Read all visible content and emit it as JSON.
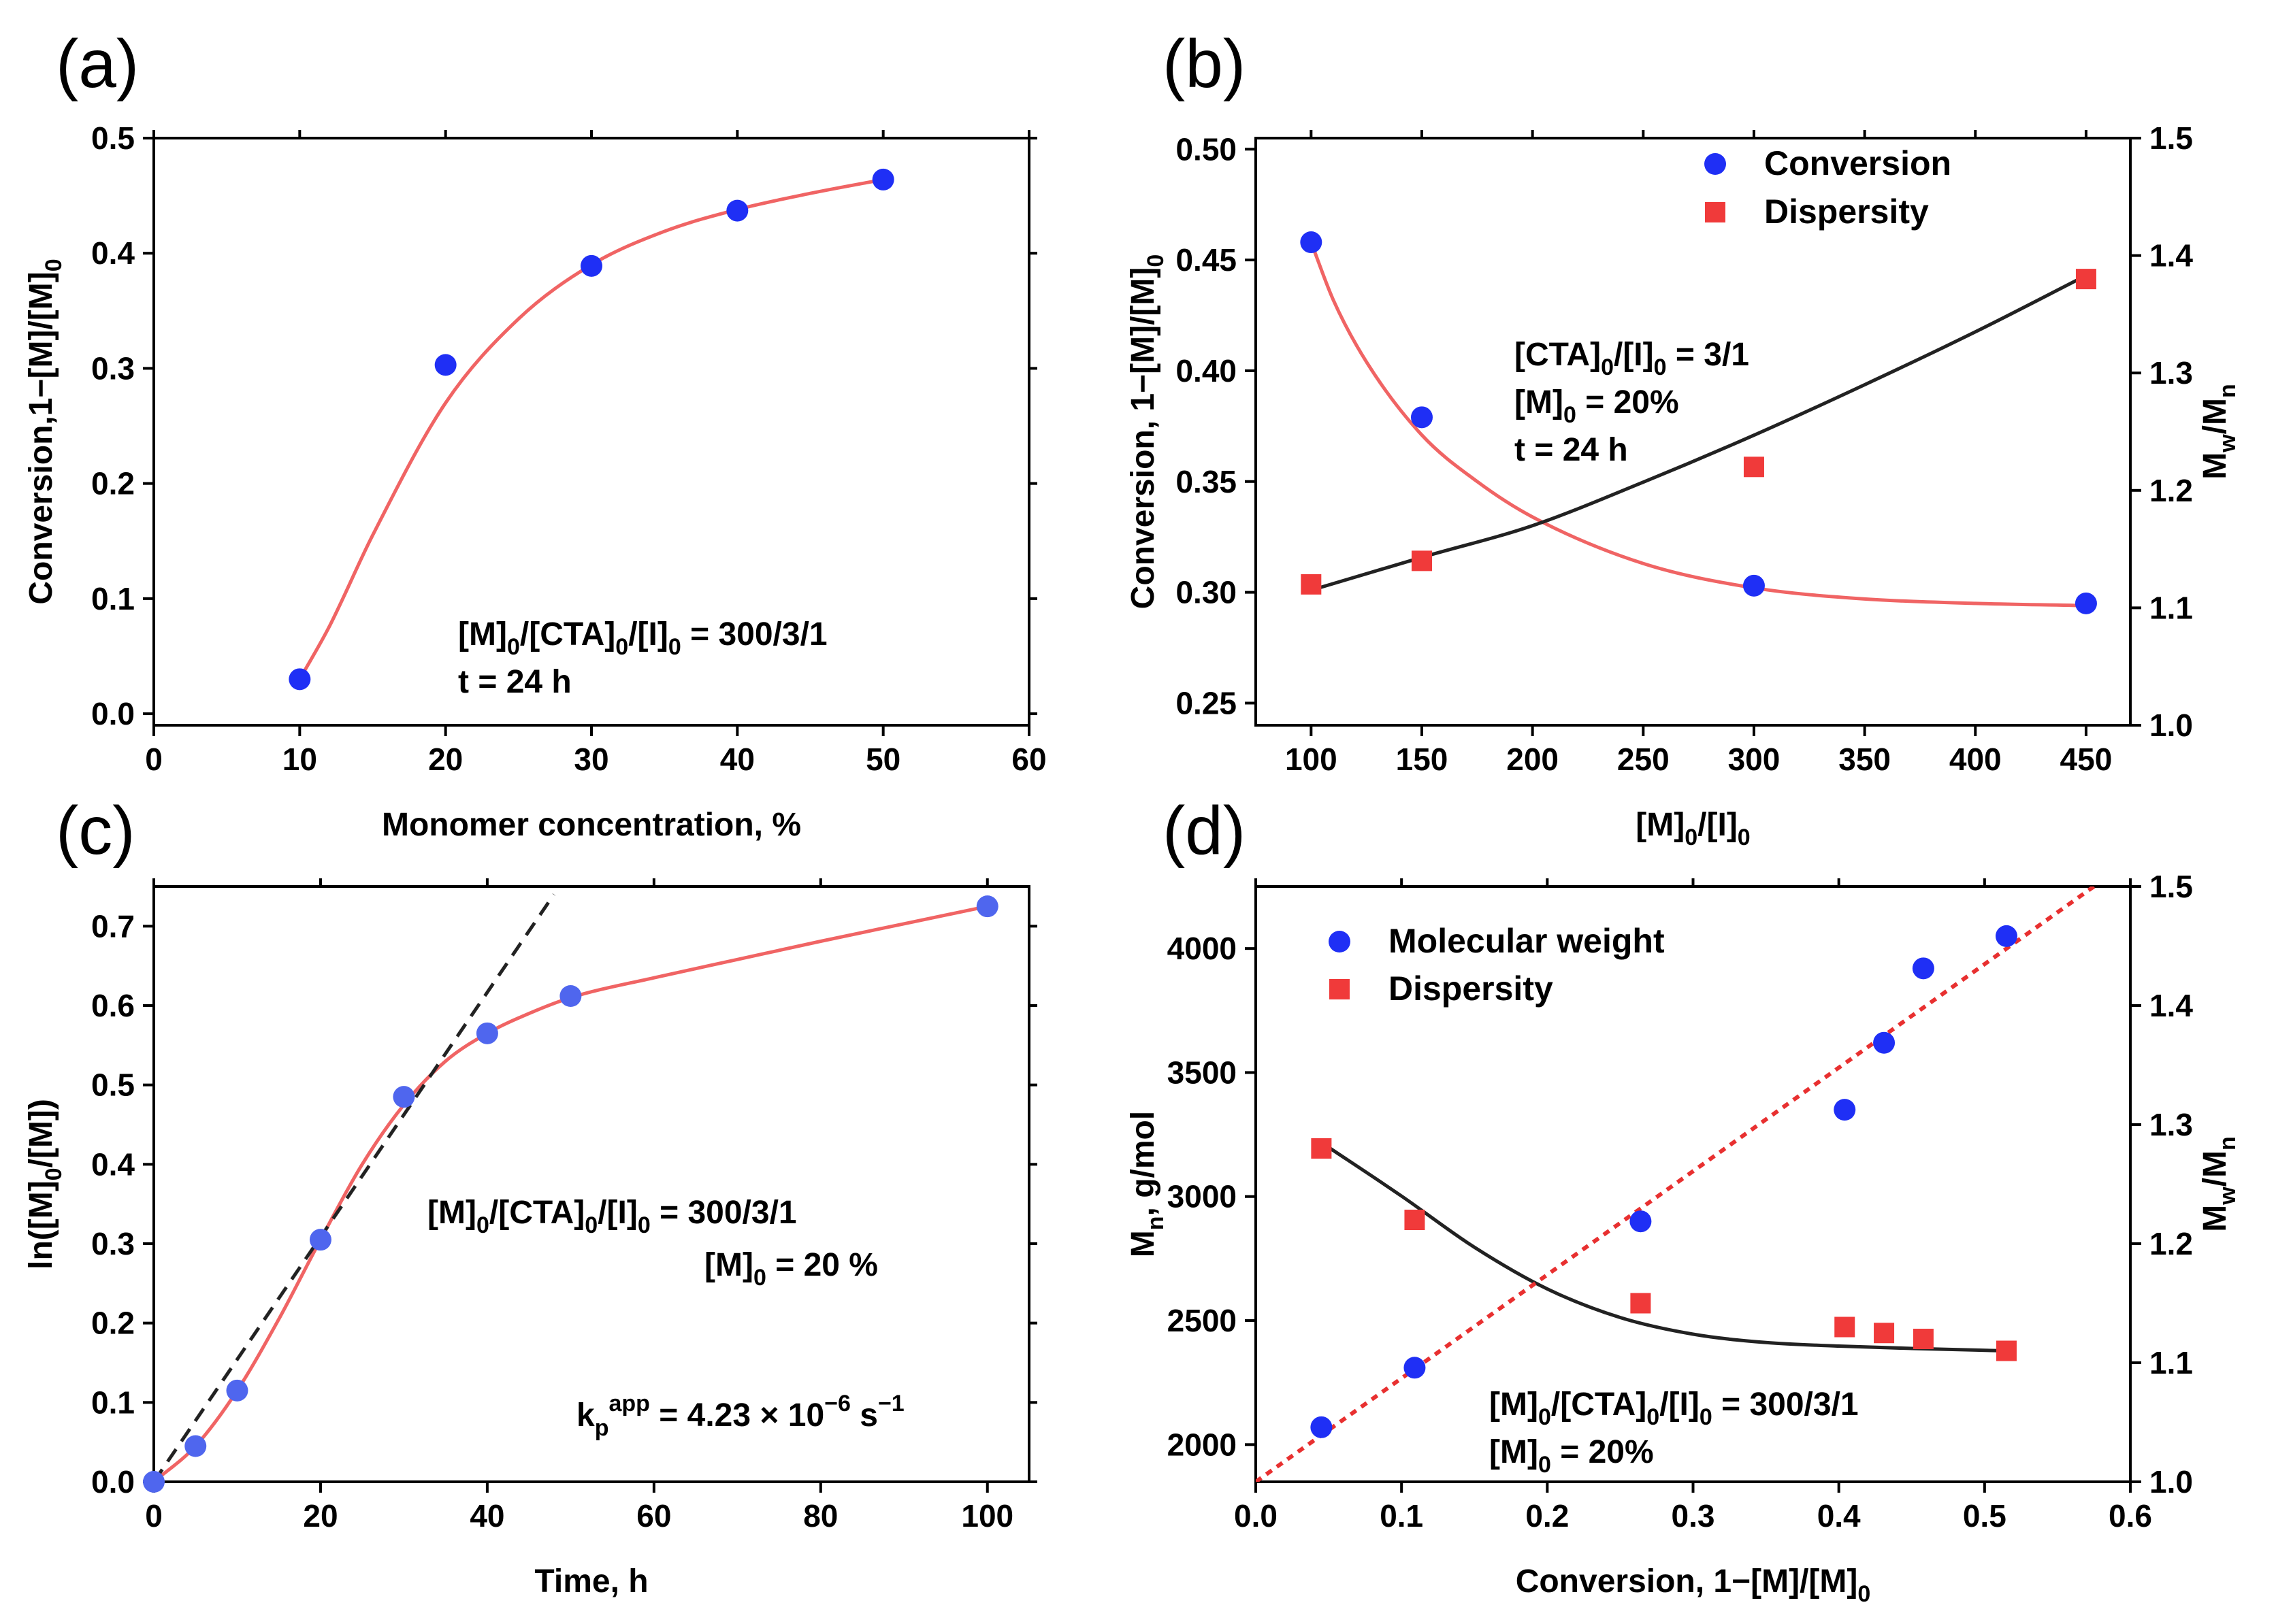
{
  "colors": {
    "blue": "#1f2ff5",
    "blue_light": "#4f66ee",
    "red": "#f03a3a",
    "red_line": "#f06464",
    "black": "#222222"
  },
  "chart_data": [
    {
      "id": "a",
      "panel_label": "(a)",
      "type": "scatter",
      "xlabel": "Monomer concentration, %",
      "ylabel": "Conversion,1−[M]/[M]",
      "ylabel_sub": "0",
      "xlim": [
        0,
        60
      ],
      "ylim": [
        -0.01,
        0.5
      ],
      "xticks": [
        0,
        10,
        20,
        30,
        40,
        50,
        60
      ],
      "yticks": [
        0.0,
        0.1,
        0.2,
        0.3,
        0.4,
        0.5
      ],
      "series": [
        {
          "name": "Conversion",
          "marker": "circle",
          "color": "#1f2ff5",
          "x": [
            10,
            20,
            30,
            40,
            50
          ],
          "y": [
            0.03,
            0.303,
            0.389,
            0.437,
            0.464
          ]
        }
      ],
      "fits": [
        {
          "color": "#f06464",
          "style": "solid",
          "x": [
            10,
            12,
            15,
            20,
            25,
            30,
            35,
            40,
            45,
            50
          ],
          "y": [
            0.03,
            0.075,
            0.155,
            0.27,
            0.343,
            0.39,
            0.419,
            0.438,
            0.452,
            0.464
          ]
        }
      ],
      "annotations": [
        {
          "parts": [
            [
              "[M]",
              ""
            ],
            [
              "0",
              "sub"
            ],
            [
              "/[CTA]",
              ""
            ],
            [
              "0",
              "sub"
            ],
            [
              "/[I]",
              ""
            ],
            [
              "0",
              "sub"
            ],
            [
              " = 300/3/1",
              ""
            ]
          ]
        },
        {
          "parts": [
            [
              "t = 24 h",
              ""
            ]
          ]
        }
      ]
    },
    {
      "id": "b",
      "panel_label": "(b)",
      "type": "scatter",
      "xlabel": "[M]",
      "xlabel_parts": [
        [
          "[M]",
          ""
        ],
        [
          "0",
          "sub"
        ],
        [
          "/[I]",
          ""
        ],
        [
          "0",
          "sub"
        ]
      ],
      "ylabel": "Conversion, 1−[M]/[M]",
      "ylabel_sub": "0",
      "y2label": "M",
      "xlim": [
        75,
        470
      ],
      "ylim": [
        0.24,
        0.505
      ],
      "y2lim": [
        1.0,
        1.5
      ],
      "xticks": [
        100,
        150,
        200,
        250,
        300,
        350,
        400,
        450
      ],
      "yticks": [
        0.25,
        0.3,
        0.35,
        0.4,
        0.45,
        0.5
      ],
      "yticks_text": [
        "0.25",
        "0.30",
        "0.35",
        "0.40",
        "0.45",
        "0.50"
      ],
      "y2ticks": [
        1.0,
        1.1,
        1.2,
        1.3,
        1.4,
        1.5
      ],
      "legend": [
        {
          "label": "Conversion",
          "marker": "circle",
          "color": "#1f2ff5"
        },
        {
          "label": "Dispersity",
          "marker": "square",
          "color": "#f03a3a"
        }
      ],
      "series": [
        {
          "name": "Conversion",
          "marker": "circle",
          "color": "#1f2ff5",
          "axis": "left",
          "x": [
            100,
            150,
            300,
            450
          ],
          "y": [
            0.458,
            0.379,
            0.303,
            0.295
          ]
        },
        {
          "name": "Dispersity",
          "marker": "square",
          "color": "#f03a3a",
          "axis": "right",
          "x": [
            100,
            150,
            300,
            450
          ],
          "y": [
            1.12,
            1.14,
            1.22,
            1.38
          ]
        }
      ],
      "fits": [
        {
          "color": "#f06464",
          "style": "solid",
          "axis": "left",
          "x": [
            100,
            110,
            125,
            150,
            175,
            200,
            250,
            300,
            350,
            400,
            450
          ],
          "y": [
            0.458,
            0.432,
            0.404,
            0.371,
            0.35,
            0.334,
            0.313,
            0.302,
            0.297,
            0.295,
            0.294
          ]
        },
        {
          "color": "#222222",
          "style": "solid",
          "axis": "right",
          "x": [
            100,
            150,
            200,
            250,
            300,
            350,
            400,
            450
          ],
          "y": [
            1.115,
            1.143,
            1.17,
            1.207,
            1.247,
            1.29,
            1.335,
            1.383
          ]
        }
      ],
      "annotations": [
        {
          "parts": [
            [
              "[CTA]",
              ""
            ],
            [
              "0",
              "sub"
            ],
            [
              "/[I]",
              ""
            ],
            [
              "0",
              "sub"
            ],
            [
              " = 3/1",
              ""
            ]
          ]
        },
        {
          "parts": [
            [
              "[M]",
              ""
            ],
            [
              "0",
              "sub"
            ],
            [
              " = 20%",
              ""
            ]
          ]
        },
        {
          "parts": [
            [
              "t = 24 h",
              ""
            ]
          ]
        }
      ]
    },
    {
      "id": "c",
      "panel_label": "(c)",
      "type": "scatter",
      "xlabel": "Time, h",
      "ylabel": "ln([M]",
      "xlim": [
        0,
        105
      ],
      "ylim": [
        0,
        0.75
      ],
      "xticks": [
        0,
        20,
        40,
        60,
        80,
        100
      ],
      "yticks": [
        0.0,
        0.1,
        0.2,
        0.3,
        0.4,
        0.5,
        0.6,
        0.7
      ],
      "series": [
        {
          "name": "ln([M]0/[M])",
          "marker": "circle",
          "color": "#4f66ee",
          "x": [
            0,
            5,
            10,
            20,
            30,
            40,
            50,
            100
          ],
          "y": [
            0.0,
            0.045,
            0.115,
            0.305,
            0.485,
            0.565,
            0.612,
            0.725
          ]
        }
      ],
      "fits": [
        {
          "color": "#f06464",
          "style": "solid",
          "x": [
            0,
            5,
            10,
            15,
            20,
            25,
            30,
            35,
            40,
            45,
            50,
            60,
            70,
            80,
            90,
            100
          ],
          "y": [
            0.0,
            0.045,
            0.115,
            0.205,
            0.305,
            0.4,
            0.475,
            0.53,
            0.565,
            0.59,
            0.61,
            0.635,
            0.658,
            0.681,
            0.703,
            0.725
          ]
        },
        {
          "color": "#222222",
          "style": "dashed",
          "x": [
            0,
            48
          ],
          "y": [
            0.0,
            0.74
          ]
        }
      ],
      "annotations": [
        {
          "parts": [
            [
              "[M]",
              ""
            ],
            [
              "0",
              "sub"
            ],
            [
              "/[CTA]",
              ""
            ],
            [
              "0",
              "sub"
            ],
            [
              "/[I]",
              ""
            ],
            [
              "0",
              "sub"
            ],
            [
              " = 300/3/1",
              ""
            ]
          ]
        },
        {
          "parts": [
            [
              "[M]",
              ""
            ],
            [
              "0",
              "sub"
            ],
            [
              " = 20 %",
              ""
            ]
          ]
        },
        {
          "parts": [
            [
              "k",
              ""
            ],
            [
              "p",
              "sub"
            ],
            [
              "app",
              "sup"
            ],
            [
              " = 4.23 × 10",
              ""
            ],
            [
              "−6",
              "sup"
            ],
            [
              " s",
              ""
            ],
            [
              "−1",
              "sup"
            ]
          ]
        }
      ]
    },
    {
      "id": "d",
      "panel_label": "(d)",
      "type": "scatter",
      "xlabel": "Conversion, 1−[M]/[M]",
      "xlabel_parts": [
        [
          "Conversion, 1−[M]/[M]",
          ""
        ],
        [
          "0",
          "sub"
        ]
      ],
      "ylabel": "M",
      "y2label": "M",
      "xlim": [
        0.0,
        0.6
      ],
      "ylim": [
        1850,
        4250
      ],
      "y2lim": [
        1.0,
        1.5
      ],
      "xticks": [
        0.0,
        0.1,
        0.2,
        0.3,
        0.4,
        0.5,
        0.6
      ],
      "yticks": [
        2000,
        2500,
        3000,
        3500,
        4000
      ],
      "y2ticks": [
        1.0,
        1.1,
        1.2,
        1.3,
        1.4,
        1.5
      ],
      "legend": [
        {
          "label": "Molecular weight",
          "marker": "circle",
          "color": "#1f2ff5"
        },
        {
          "label": "Dispersity",
          "marker": "square",
          "color": "#f03a3a"
        }
      ],
      "series": [
        {
          "name": "Molecular weight",
          "marker": "circle",
          "color": "#1f2ff5",
          "axis": "left",
          "x": [
            0.045,
            0.109,
            0.264,
            0.404,
            0.431,
            0.458,
            0.515
          ],
          "y": [
            2070,
            2310,
            2900,
            3350,
            3620,
            3920,
            4050
          ]
        },
        {
          "name": "Dispersity",
          "marker": "square",
          "color": "#f03a3a",
          "axis": "right",
          "x": [
            0.045,
            0.109,
            0.264,
            0.404,
            0.431,
            0.458,
            0.515
          ],
          "y": [
            1.28,
            1.22,
            1.15,
            1.13,
            1.125,
            1.12,
            1.11
          ]
        }
      ],
      "fits": [
        {
          "color": "#222222",
          "style": "solid",
          "axis": "right",
          "x": [
            0.045,
            0.1,
            0.15,
            0.2,
            0.25,
            0.3,
            0.35,
            0.4,
            0.45,
            0.515
          ],
          "y": [
            1.285,
            1.24,
            1.197,
            1.162,
            1.138,
            1.124,
            1.117,
            1.114,
            1.112,
            1.11
          ]
        },
        {
          "color": "#e83030",
          "style": "dotted",
          "axis": "left",
          "x": [
            0.0,
            0.575
          ],
          "y": [
            1850,
            4250
          ]
        }
      ],
      "annotations": [
        {
          "parts": [
            [
              "[M]",
              ""
            ],
            [
              "0",
              "sub"
            ],
            [
              "/[CTA]",
              ""
            ],
            [
              "0",
              "sub"
            ],
            [
              "/[I]",
              ""
            ],
            [
              "0",
              "sub"
            ],
            [
              " = 300/3/1",
              ""
            ]
          ]
        },
        {
          "parts": [
            [
              "[M]",
              ""
            ],
            [
              "0",
              "sub"
            ],
            [
              " = 20%",
              ""
            ]
          ]
        }
      ]
    }
  ]
}
